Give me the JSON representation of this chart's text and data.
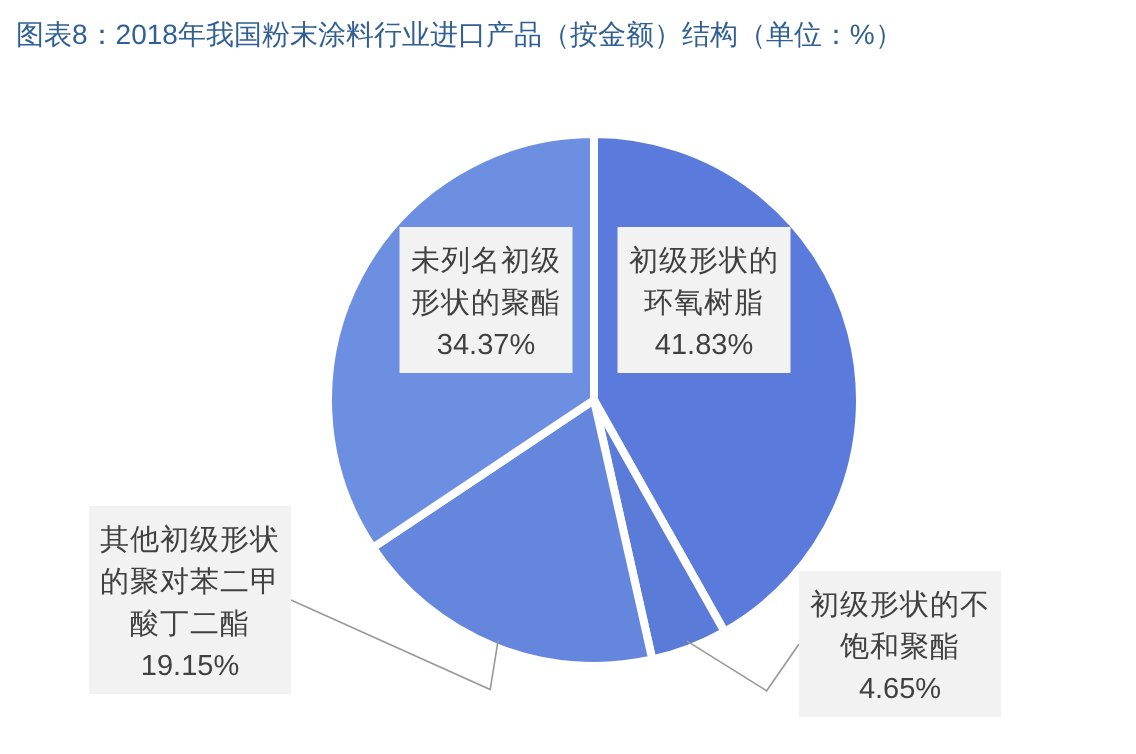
{
  "chart_data": {
    "type": "pie",
    "title": "图表8：2018年我国粉末涂料行业进口产品（按金额）结构（单位：%）",
    "categories": [
      "初级形状的环氧树脂",
      "初级形状的不饱和聚酯",
      "其他初级形状的聚对苯二甲酸丁二酯",
      "未列名初级形状的聚酯"
    ],
    "values": [
      41.83,
      4.65,
      19.15,
      34.37
    ],
    "colors": [
      "#5a7bdb",
      "#5b7bd9",
      "#6586dd",
      "#6d8fe1"
    ],
    "value_labels": [
      "41.83%",
      "4.65%",
      "19.15%",
      "34.37%"
    ],
    "legend": false
  }
}
